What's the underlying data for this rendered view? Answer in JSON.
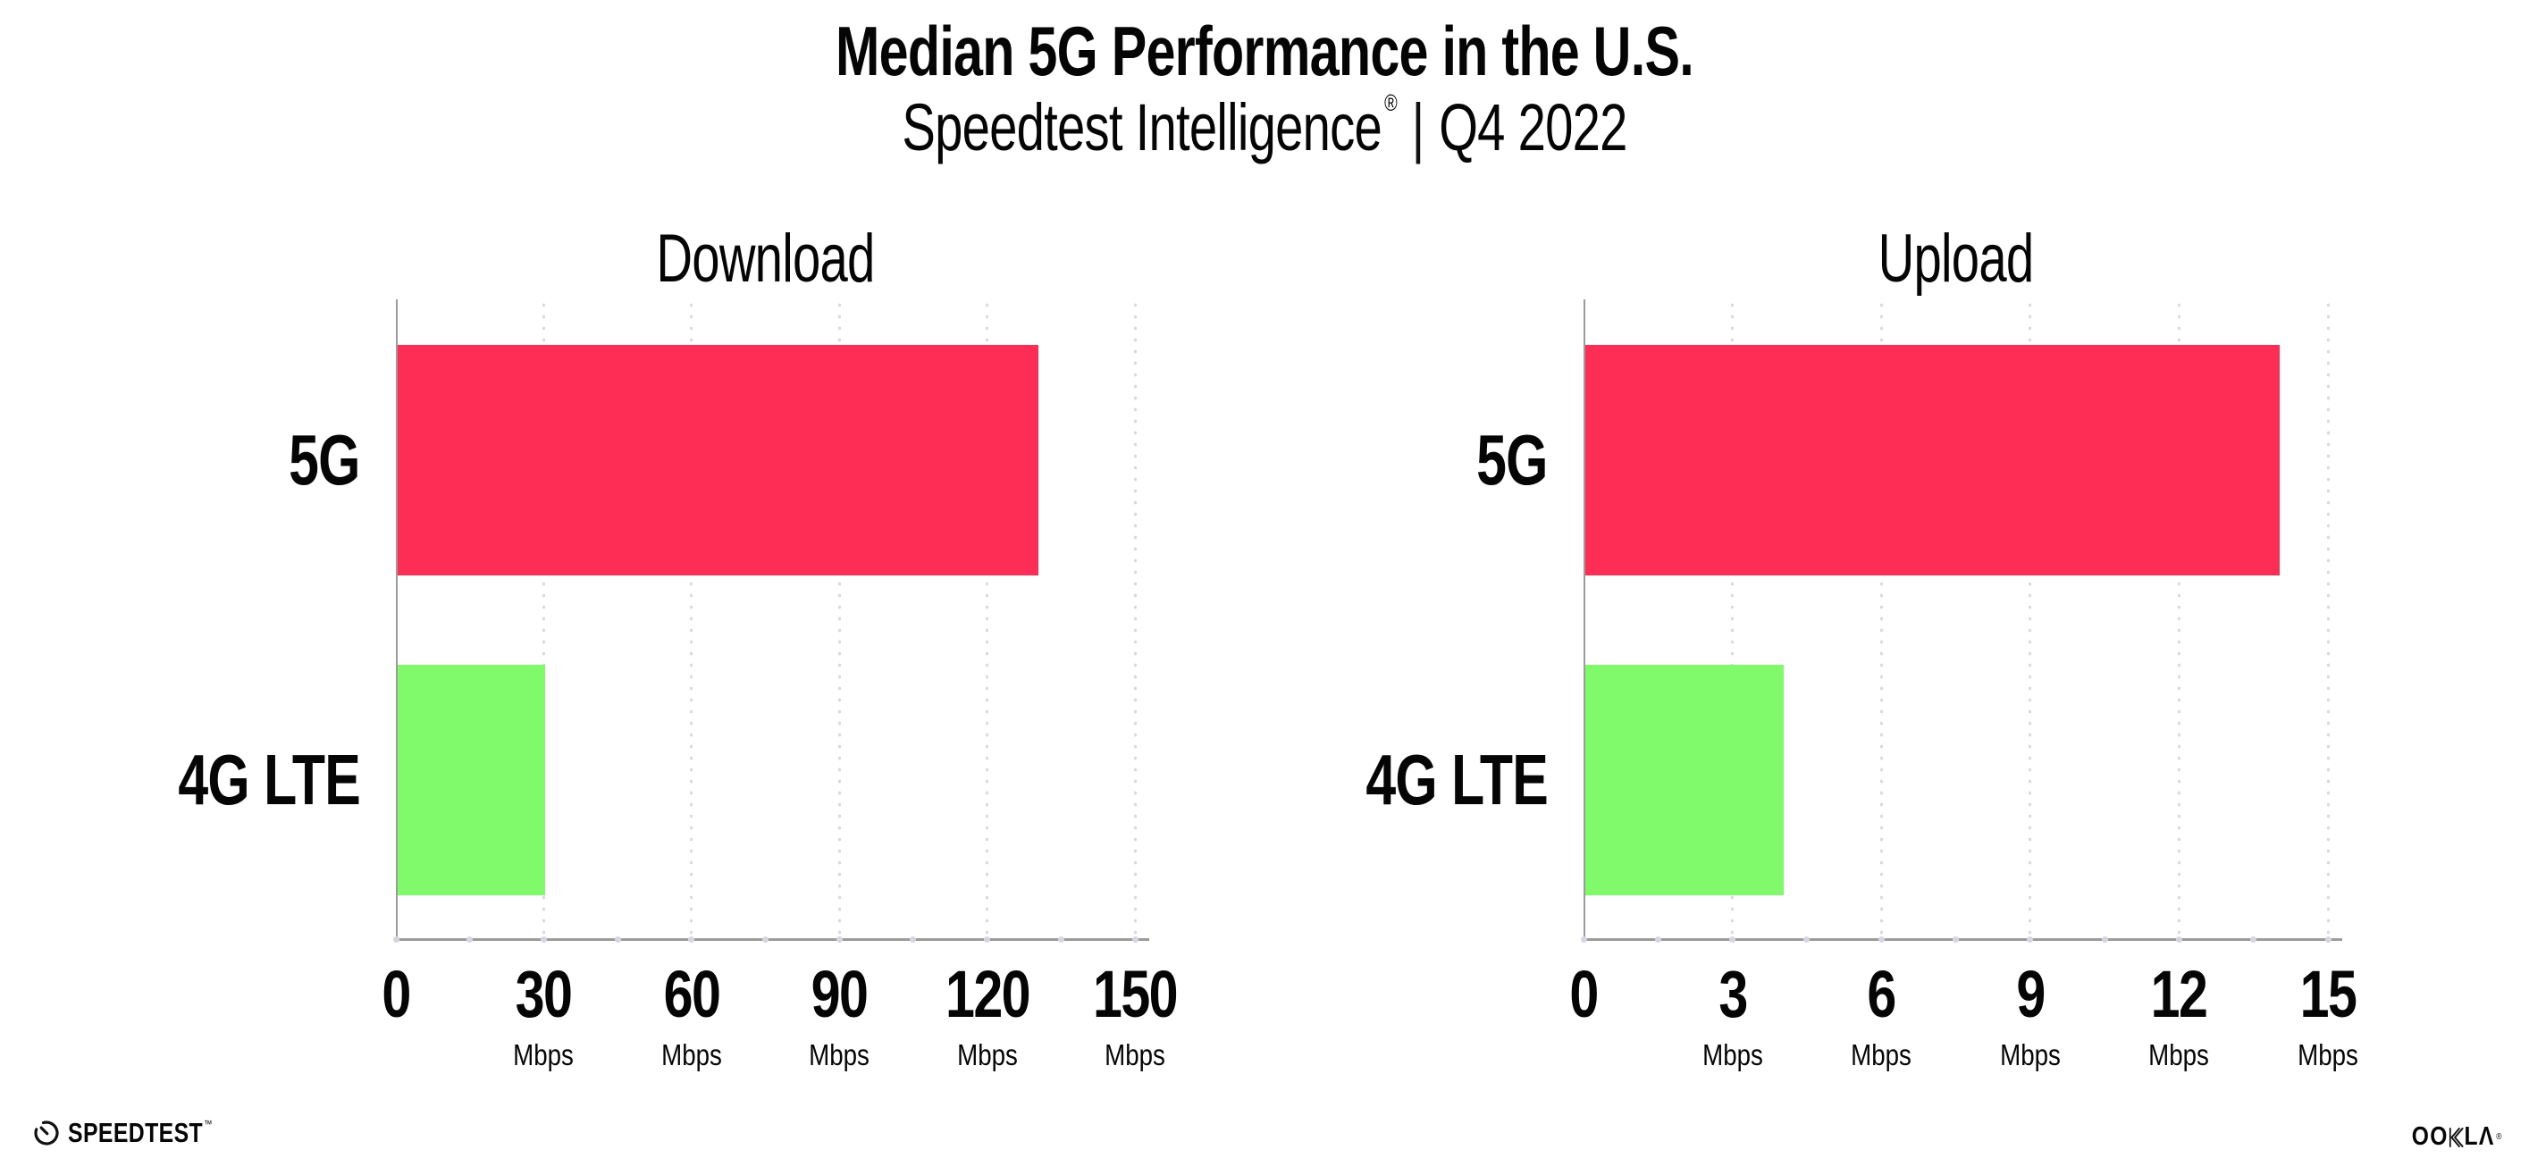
{
  "header": {
    "title": "Median 5G Performance in the U.S.",
    "subtitle_brand": "Speedtest Intelligence",
    "subtitle_reg": "®",
    "subtitle_sep": "|",
    "subtitle_period": "Q4 2022"
  },
  "footer": {
    "speedtest": "SPEEDTEST",
    "speedtest_tm": "™",
    "ookla_oo": "OO",
    "ookla_la": "LΛ",
    "ookla_reg": "®"
  },
  "colors": {
    "bar_5g": "#fd2d55",
    "bar_4g_lte": "#80fa6a",
    "axis": "#9b9b9b",
    "gridline": "#d9d9e4",
    "text": "#050505"
  },
  "chart_data": [
    {
      "type": "bar",
      "orientation": "horizontal",
      "title": "Download",
      "categories": [
        "5G",
        "4G LTE"
      ],
      "values": [
        130,
        30
      ],
      "unit": "Mbps",
      "xlim": [
        0,
        150
      ],
      "xticks": [
        0,
        30,
        60,
        90,
        120,
        150
      ],
      "xtick_unit_label": "Mbps",
      "bar_colors": [
        "#fd2d55",
        "#80fa6a"
      ],
      "grid": "dotted-vertical",
      "legend": "none"
    },
    {
      "type": "bar",
      "orientation": "horizontal",
      "title": "Upload",
      "categories": [
        "5G",
        "4G LTE"
      ],
      "values": [
        14,
        4
      ],
      "unit": "Mbps",
      "xlim": [
        0,
        15
      ],
      "xticks": [
        0,
        3,
        6,
        9,
        12,
        15
      ],
      "xtick_unit_label": "Mbps",
      "bar_colors": [
        "#fd2d55",
        "#80fa6a"
      ],
      "grid": "dotted-vertical",
      "legend": "none"
    }
  ]
}
